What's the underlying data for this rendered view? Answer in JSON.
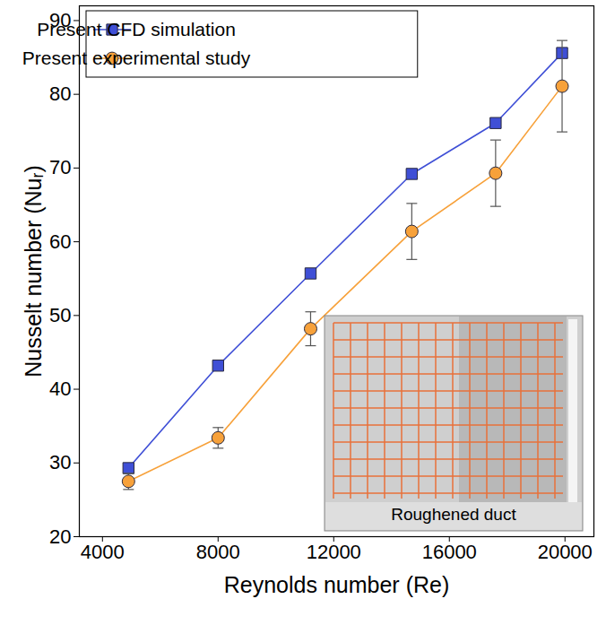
{
  "chart_data": {
    "type": "line",
    "x_label": "Reynolds number (Re)",
    "y_label": "Nusselt number (Nuᵣ)",
    "xlim": [
      3200,
      21000
    ],
    "xticks": [
      4000,
      8000,
      12000,
      16000,
      20000
    ],
    "ylim": [
      20,
      92
    ],
    "yticks": [
      20,
      30,
      40,
      50,
      60,
      70,
      80,
      90
    ],
    "legend": "upper left",
    "annotations": [
      "Roughened duct"
    ],
    "series": [
      {
        "name": "Present CFD simulation",
        "color": "#3f4fd6",
        "marker": "square",
        "x": [
          4900,
          8000,
          11200,
          14700,
          17600,
          19900
        ],
        "values": [
          29.3,
          43.2,
          55.7,
          69.2,
          76.1,
          85.6
        ]
      },
      {
        "name": "Present experimental study",
        "color": "#f7a13a",
        "marker": "circle",
        "x": [
          4900,
          8000,
          11200,
          14700,
          17600,
          19900
        ],
        "values": [
          27.5,
          33.4,
          48.2,
          61.4,
          69.3,
          81.1
        ],
        "errors": [
          1.1,
          1.4,
          2.3,
          3.8,
          4.5,
          6.2
        ]
      }
    ]
  }
}
